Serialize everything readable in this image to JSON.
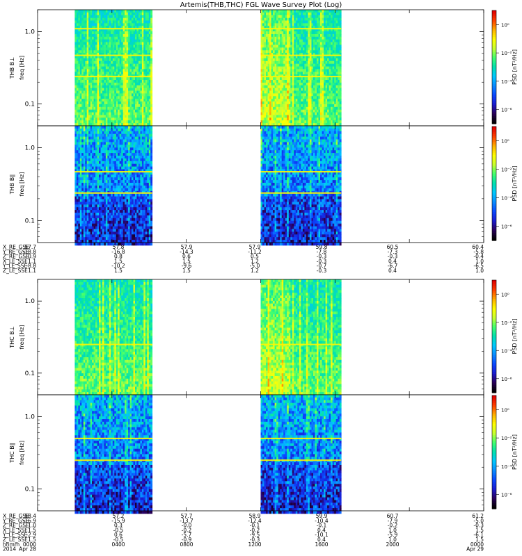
{
  "title": "Artemis(THB,THC) FGL Wave Survey Plot (Log)",
  "colors": {
    "scale": [
      "#000000",
      "#2a005a",
      "#1b1bd0",
      "#0a48ff",
      "#0a8cff",
      "#00c8ff",
      "#00e0b0",
      "#40ff70",
      "#c8ff30",
      "#ffff00",
      "#ffb000",
      "#ff4000",
      "#e00000"
    ]
  },
  "chart_data": {
    "type": "heatmap",
    "x_time_range": [
      "0000",
      "0000"
    ],
    "y_scale": "log",
    "ylim": [
      0.05,
      2.0
    ],
    "y_ticks": [
      {
        "value": 1.0,
        "label": "1.0"
      },
      {
        "value": 0.1,
        "label": "0.1"
      }
    ],
    "colorbar": {
      "label": "PSD [nT²/Hz]",
      "scale": "log",
      "ticks": [
        {
          "label": "10⁰",
          "exp": 0
        },
        {
          "label": "10⁻²",
          "exp": -2
        },
        {
          "label": "10⁻⁴",
          "exp": -4
        },
        {
          "label": "10⁻⁶",
          "exp": -6
        }
      ]
    },
    "panels": [
      {
        "probe": "THB",
        "component": "B⊥",
        "ylabel": "THB B⊥",
        "unit_label": "freq [Hz]",
        "data_intervals_hhmm": [
          [
            "0200",
            "0610"
          ],
          [
            "1200",
            "1620"
          ]
        ],
        "line_freqs": [
          1.1,
          0.47,
          0.24
        ],
        "level": "high"
      },
      {
        "probe": "THB",
        "component": "B∥",
        "ylabel": "THB B∥",
        "unit_label": "freq [Hz]",
        "data_intervals_hhmm": [
          [
            "0200",
            "0610"
          ],
          [
            "1200",
            "1620"
          ]
        ],
        "line_freqs": [
          0.47,
          0.24
        ],
        "level": "low"
      },
      {
        "probe": "THC",
        "component": "B⊥",
        "ylabel": "THC B⊥",
        "unit_label": "freq [Hz]",
        "data_intervals_hhmm": [
          [
            "0200",
            "0610"
          ],
          [
            "1200",
            "1620"
          ]
        ],
        "line_freqs": [
          0.25
        ],
        "level": "high"
      },
      {
        "probe": "THC",
        "component": "B∥",
        "ylabel": "THC B∥",
        "unit_label": "freq [Hz]",
        "data_intervals_hhmm": [
          [
            "0200",
            "0610"
          ],
          [
            "1200",
            "1620"
          ]
        ],
        "line_freqs": [
          0.5,
          0.25
        ],
        "level": "low"
      }
    ],
    "ephemeris_thb": {
      "rows": [
        {
          "name": "X_RE_GSE",
          "values": [
            "57.7",
            "57.8",
            "57.9",
            "57.9",
            "59.8",
            "60.5",
            "60.4"
          ]
        },
        {
          "name": "Y_RE_GSE",
          "values": [
            "-18.8",
            "-16.8",
            "-14.3",
            "-11.2",
            "-7.8",
            "-7.3",
            "-5.8"
          ]
        },
        {
          "name": "Z_RE_GSE",
          "values": [
            "0.9",
            "0.8",
            "0.6",
            "0.5",
            "-0.3",
            "-0.3",
            "-0.4"
          ]
        },
        {
          "name": "X_LE_SSE",
          "values": [
            "1.1",
            "1.5",
            "1.5",
            "1.2",
            "-0.3",
            "0.4",
            "1.0"
          ]
        },
        {
          "name": "Y_LE_SSE",
          "values": [
            "-8.8",
            "-10.2",
            "-9.6",
            "-5.0",
            "-0.7",
            "-6.7",
            "-6.5"
          ]
        },
        {
          "name": "Z_LE_SSE",
          "values": [
            "1.1",
            "1.5",
            "1.5",
            "1.2",
            "-0.3",
            "0.4",
            "1.0"
          ]
        }
      ]
    },
    "ephemeris_thc": {
      "rows": [
        {
          "name": "X_RE_GSE",
          "values": [
            "58.4",
            "57.2",
            "57.7",
            "58.9",
            "59.9",
            "60.7",
            "61.2"
          ]
        },
        {
          "name": "Y_RE_GSE",
          "values": [
            "-16.9",
            "-15.9",
            "-13.7",
            "-12.4",
            "-10.4",
            "-7.9",
            "-5.0"
          ]
        },
        {
          "name": "Z_RE_GSE",
          "values": [
            "1.0",
            "0.3",
            "-0.0",
            "-0.1",
            "-0.1",
            "-0.2",
            "-0.3"
          ]
        },
        {
          "name": "X_LE_SSE",
          "values": [
            "1.5",
            "-0.5",
            "-0.2",
            "-0.2",
            "0.4",
            "1.0",
            "1.5"
          ]
        },
        {
          "name": "Y_LE_SSE",
          "values": [
            "-2.9",
            "0.6",
            "-5.7",
            "-9.5",
            "-10.1",
            "-5.9",
            "-6.1"
          ]
        },
        {
          "name": "Z_LE_SSE",
          "values": [
            "1.5",
            "-0.5",
            "-0.9",
            "-0.3",
            "0.4",
            "1.0",
            "1.5"
          ]
        }
      ],
      "hhmm": {
        "name": "hhmm",
        "values": [
          "0000",
          "0400",
          "0800",
          "1200",
          "1600",
          "2000",
          "0000"
        ]
      },
      "date": {
        "name": "2014",
        "values": [
          "Apr 28",
          "",
          "",
          "",
          "",
          "",
          "Apr 29"
        ]
      }
    }
  }
}
